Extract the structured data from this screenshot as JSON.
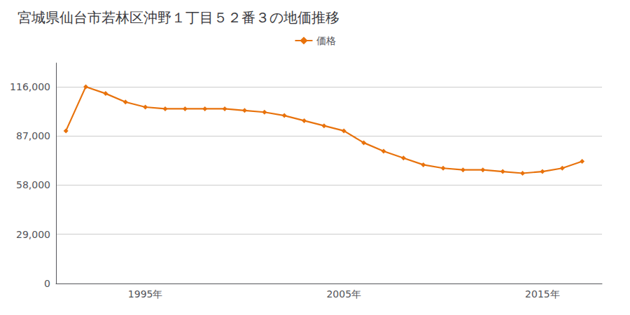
{
  "chart_data": {
    "type": "line",
    "title": "宮城県仙台市若林区沖野１丁目５２番３の地価推移",
    "x": [
      1991,
      1992,
      1993,
      1994,
      1995,
      1996,
      1997,
      1998,
      1999,
      2000,
      2001,
      2002,
      2003,
      2004,
      2005,
      2006,
      2007,
      2008,
      2009,
      2010,
      2011,
      2012,
      2013,
      2014,
      2015,
      2016,
      2017
    ],
    "series": [
      {
        "name": "価格",
        "color": "#E8720C",
        "marker": "diamond",
        "values": [
          90000,
          116000,
          112000,
          107000,
          104000,
          103000,
          103000,
          103000,
          103000,
          102000,
          101000,
          99000,
          96000,
          93000,
          90000,
          83000,
          78000,
          74000,
          70000,
          68000,
          67000,
          67000,
          66000,
          65000,
          66000,
          68000,
          72000
        ]
      }
    ],
    "xlim": [
      1990.5,
      2018
    ],
    "xticks": [
      {
        "value": 1995,
        "label": "1995年"
      },
      {
        "value": 2005,
        "label": "2005年"
      },
      {
        "value": 2015,
        "label": "2015年"
      }
    ],
    "ylim": [
      0,
      130000
    ],
    "yticks": [
      0,
      {
        "value": 29000,
        "label": "29,000"
      },
      {
        "value": 58000,
        "label": "58,000"
      },
      {
        "value": 87000,
        "label": "87,000"
      },
      {
        "value": 116000,
        "label": "116,000"
      }
    ],
    "grid": "y",
    "legend": "top"
  }
}
